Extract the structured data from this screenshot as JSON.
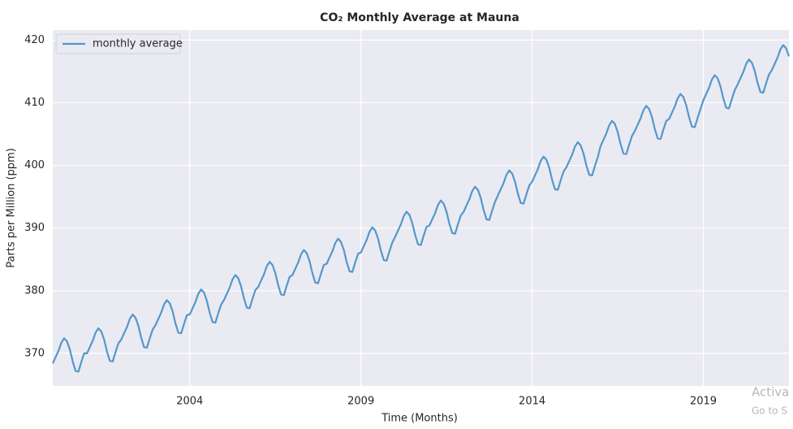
{
  "chart_data": {
    "type": "line",
    "title": "CO₂ Monthly Average at Mauna",
    "xlabel": "Time (Months)",
    "ylabel": "Parts per Million (ppm)",
    "xlim": [
      2000,
      2021.5
    ],
    "ylim": [
      364.8,
      421.6
    ],
    "xticks": [
      2004,
      2009,
      2014,
      2019
    ],
    "yticks": [
      370,
      380,
      390,
      400,
      410,
      420
    ],
    "grid": true,
    "legend": "upper left",
    "x": [
      2000,
      2000.083,
      2000.167,
      2000.25,
      2000.333,
      2000.417,
      2000.5,
      2000.583,
      2000.667,
      2000.75,
      2000.833,
      2000.917,
      2001,
      2001.083,
      2001.167,
      2001.25,
      2001.333,
      2001.417,
      2001.5,
      2001.583,
      2001.667,
      2001.75,
      2001.833,
      2001.917,
      2002,
      2002.083,
      2002.167,
      2002.25,
      2002.333,
      2002.417,
      2002.5,
      2002.583,
      2002.667,
      2002.75,
      2002.833,
      2002.917,
      2003,
      2003.083,
      2003.167,
      2003.25,
      2003.333,
      2003.417,
      2003.5,
      2003.583,
      2003.667,
      2003.75,
      2003.833,
      2003.917,
      2004,
      2004.083,
      2004.167,
      2004.25,
      2004.333,
      2004.417,
      2004.5,
      2004.583,
      2004.667,
      2004.75,
      2004.833,
      2004.917,
      2005,
      2005.083,
      2005.167,
      2005.25,
      2005.333,
      2005.417,
      2005.5,
      2005.583,
      2005.667,
      2005.75,
      2005.833,
      2005.917,
      2006,
      2006.083,
      2006.167,
      2006.25,
      2006.333,
      2006.417,
      2006.5,
      2006.583,
      2006.667,
      2006.75,
      2006.833,
      2006.917,
      2007,
      2007.083,
      2007.167,
      2007.25,
      2007.333,
      2007.417,
      2007.5,
      2007.583,
      2007.667,
      2007.75,
      2007.833,
      2007.917,
      2008,
      2008.083,
      2008.167,
      2008.25,
      2008.333,
      2008.417,
      2008.5,
      2008.583,
      2008.667,
      2008.75,
      2008.833,
      2008.917,
      2009,
      2009.083,
      2009.167,
      2009.25,
      2009.333,
      2009.417,
      2009.5,
      2009.583,
      2009.667,
      2009.75,
      2009.833,
      2009.917,
      2010,
      2010.083,
      2010.167,
      2010.25,
      2010.333,
      2010.417,
      2010.5,
      2010.583,
      2010.667,
      2010.75,
      2010.833,
      2010.917,
      2011,
      2011.083,
      2011.167,
      2011.25,
      2011.333,
      2011.417,
      2011.5,
      2011.583,
      2011.667,
      2011.75,
      2011.833,
      2011.917,
      2012,
      2012.083,
      2012.167,
      2012.25,
      2012.333,
      2012.417,
      2012.5,
      2012.583,
      2012.667,
      2012.75,
      2012.833,
      2012.917,
      2013,
      2013.083,
      2013.167,
      2013.25,
      2013.333,
      2013.417,
      2013.5,
      2013.583,
      2013.667,
      2013.75,
      2013.833,
      2013.917,
      2014,
      2014.083,
      2014.167,
      2014.25,
      2014.333,
      2014.417,
      2014.5,
      2014.583,
      2014.667,
      2014.75,
      2014.833,
      2014.917,
      2015,
      2015.083,
      2015.167,
      2015.25,
      2015.333,
      2015.417,
      2015.5,
      2015.583,
      2015.667,
      2015.75,
      2015.833,
      2015.917,
      2016,
      2016.083,
      2016.167,
      2016.25,
      2016.333,
      2016.417,
      2016.5,
      2016.583,
      2016.667,
      2016.75,
      2016.833,
      2016.917,
      2017,
      2017.083,
      2017.167,
      2017.25,
      2017.333,
      2017.417,
      2017.5,
      2017.583,
      2017.667,
      2017.75,
      2017.833,
      2017.917,
      2018,
      2018.083,
      2018.167,
      2018.25,
      2018.333,
      2018.417,
      2018.5,
      2018.583,
      2018.667,
      2018.75,
      2018.833,
      2018.917,
      2019,
      2019.083,
      2019.167,
      2019.25,
      2019.333,
      2019.417,
      2019.5,
      2019.583,
      2019.667,
      2019.75,
      2019.833,
      2019.917,
      2020,
      2020.083,
      2020.167,
      2020.25,
      2020.333,
      2020.417,
      2020.5,
      2020.583,
      2020.667,
      2020.75,
      2020.833,
      2020.917,
      2021,
      2021.083,
      2021.167,
      2021.25,
      2021.333,
      2021.417,
      2021.5
    ],
    "series": [
      {
        "name": "monthly average",
        "color": "#5497c9",
        "values": [
          368.4,
          369.4,
          370.4,
          371.7,
          372.4,
          371.9,
          370.6,
          368.7,
          367.2,
          367.1,
          368.6,
          370.0,
          370.0,
          371.0,
          372.0,
          373.3,
          374.0,
          373.5,
          372.2,
          370.3,
          368.8,
          368.7,
          370.2,
          371.6,
          372.2,
          373.2,
          374.2,
          375.5,
          376.2,
          375.7,
          374.4,
          372.5,
          371.0,
          370.9,
          372.4,
          373.8,
          374.5,
          375.5,
          376.5,
          377.8,
          378.5,
          378.0,
          376.7,
          374.8,
          373.3,
          373.2,
          374.7,
          376.1,
          376.2,
          377.2,
          378.2,
          379.5,
          380.2,
          379.7,
          378.4,
          376.5,
          375.0,
          374.9,
          376.4,
          377.8,
          378.5,
          379.5,
          380.5,
          381.8,
          382.5,
          382.0,
          380.7,
          378.8,
          377.3,
          377.2,
          378.7,
          380.1,
          380.6,
          381.6,
          382.6,
          383.9,
          384.6,
          384.1,
          382.8,
          380.9,
          379.4,
          379.3,
          380.8,
          382.2,
          382.5,
          383.5,
          384.5,
          385.8,
          386.5,
          386.0,
          384.7,
          382.8,
          381.3,
          381.2,
          382.7,
          384.1,
          384.3,
          385.3,
          386.3,
          387.6,
          388.3,
          387.8,
          386.5,
          384.6,
          383.1,
          383.0,
          384.5,
          385.9,
          386.1,
          387.1,
          388.1,
          389.4,
          390.1,
          389.6,
          388.3,
          386.4,
          384.9,
          384.8,
          386.3,
          387.7,
          388.6,
          389.6,
          390.6,
          391.9,
          392.6,
          392.1,
          390.8,
          388.9,
          387.4,
          387.3,
          388.8,
          390.2,
          390.4,
          391.4,
          392.4,
          393.7,
          394.4,
          393.9,
          392.6,
          390.7,
          389.2,
          389.1,
          390.6,
          392.0,
          392.6,
          393.6,
          394.6,
          395.9,
          396.6,
          396.1,
          394.8,
          392.9,
          391.4,
          391.3,
          392.8,
          394.2,
          395.2,
          396.2,
          397.2,
          398.5,
          399.2,
          398.7,
          397.4,
          395.5,
          394.0,
          393.9,
          395.4,
          396.8,
          397.4,
          398.4,
          399.4,
          400.7,
          401.4,
          400.9,
          399.6,
          397.7,
          396.2,
          396.1,
          397.6,
          399.0,
          399.7,
          400.7,
          401.7,
          403.0,
          403.7,
          403.2,
          401.9,
          400.0,
          398.5,
          398.4,
          399.9,
          401.3,
          403.1,
          404.1,
          405.1,
          406.4,
          407.1,
          406.6,
          405.3,
          403.4,
          401.9,
          401.8,
          403.3,
          404.7,
          405.5,
          406.5,
          407.5,
          408.8,
          409.5,
          409.0,
          407.7,
          405.8,
          404.3,
          404.2,
          405.7,
          407.1,
          407.4,
          408.4,
          409.4,
          410.7,
          411.4,
          410.9,
          409.6,
          407.7,
          406.2,
          406.1,
          407.6,
          409.0,
          410.4,
          411.4,
          412.4,
          413.7,
          414.4,
          413.9,
          412.6,
          410.7,
          409.2,
          409.1,
          410.6,
          412.0,
          412.9,
          413.9,
          414.9,
          416.2,
          416.9,
          416.4,
          415.1,
          413.2,
          411.7,
          411.6,
          413.1,
          414.5,
          415.2,
          416.2,
          417.2,
          418.5,
          419.2,
          418.7,
          417.4
        ]
      }
    ]
  },
  "overlay": {
    "line1": "Activa",
    "line2": "Go to S"
  }
}
